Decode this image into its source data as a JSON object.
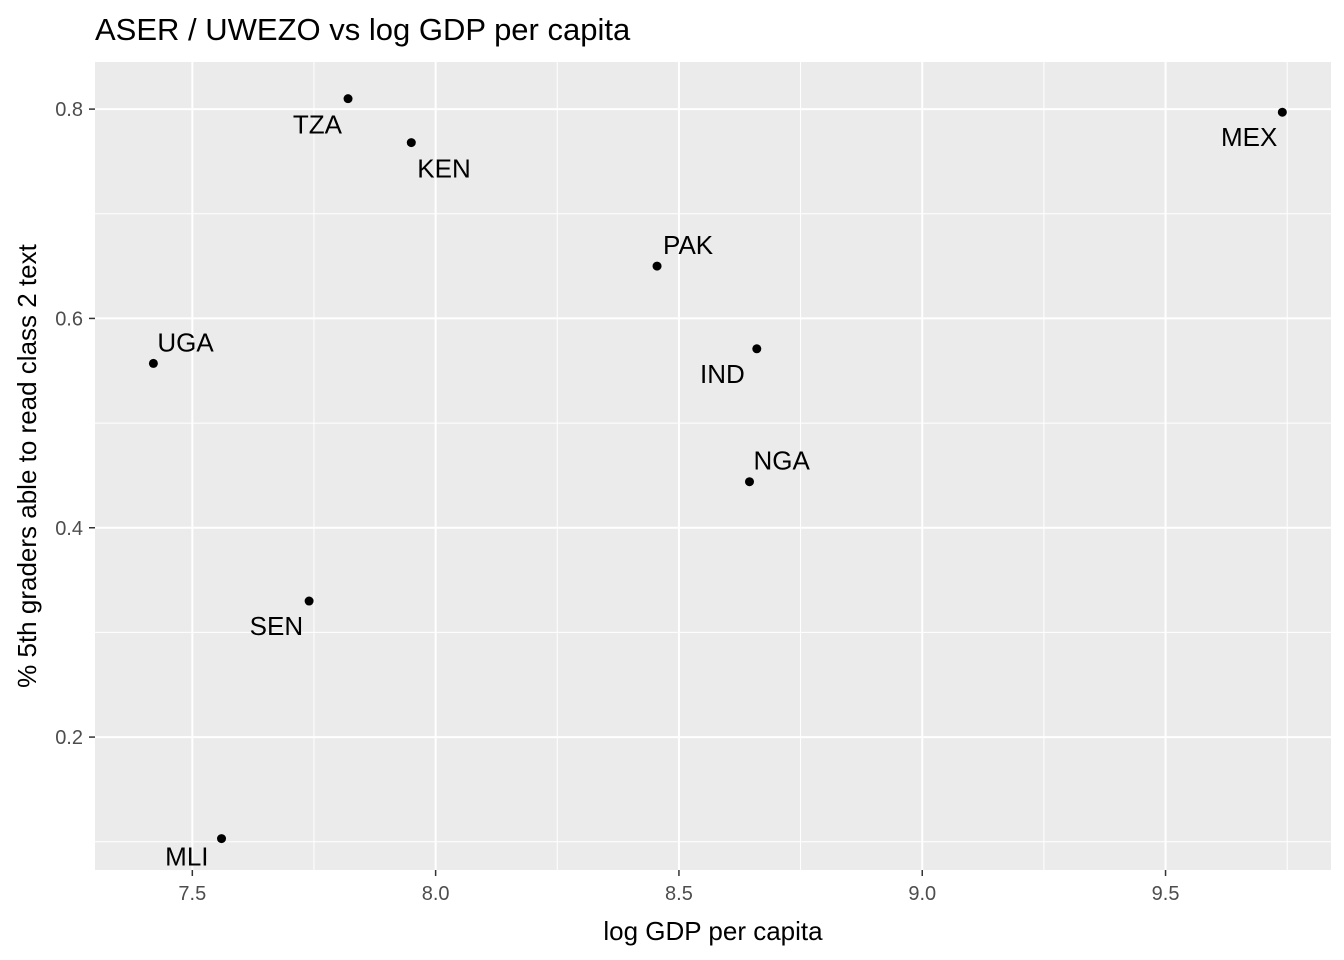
{
  "chart_data": {
    "type": "scatter",
    "title": "ASER / UWEZO vs log GDP per capita",
    "xlabel": "log GDP per capita",
    "ylabel": "% 5th graders able to read class 2 text",
    "xlim": [
      7.3,
      9.84
    ],
    "ylim": [
      0.073,
      0.845
    ],
    "x_ticks": [
      7.5,
      8.0,
      8.5,
      9.0,
      9.5
    ],
    "x_tick_labels": [
      "7.5",
      "8.0",
      "8.5",
      "9.0",
      "9.5"
    ],
    "y_ticks": [
      0.2,
      0.4,
      0.6,
      0.8
    ],
    "y_tick_labels": [
      "0.2",
      "0.4",
      "0.6",
      "0.8"
    ],
    "grid": true,
    "point_color": "#000000",
    "panel_color": "#ebebeb",
    "grid_color": "#ffffff",
    "points": [
      {
        "label": "TZA",
        "x": 7.82,
        "y": 0.81
      },
      {
        "label": "KEN",
        "x": 7.95,
        "y": 0.768
      },
      {
        "label": "MEX",
        "x": 9.74,
        "y": 0.797
      },
      {
        "label": "PAK",
        "x": 8.455,
        "y": 0.65
      },
      {
        "label": "UGA",
        "x": 7.42,
        "y": 0.557
      },
      {
        "label": "IND",
        "x": 8.66,
        "y": 0.571
      },
      {
        "label": "NGA",
        "x": 8.645,
        "y": 0.444
      },
      {
        "label": "SEN",
        "x": 7.74,
        "y": 0.33
      },
      {
        "label": "MLI",
        "x": 7.56,
        "y": 0.103
      }
    ]
  }
}
